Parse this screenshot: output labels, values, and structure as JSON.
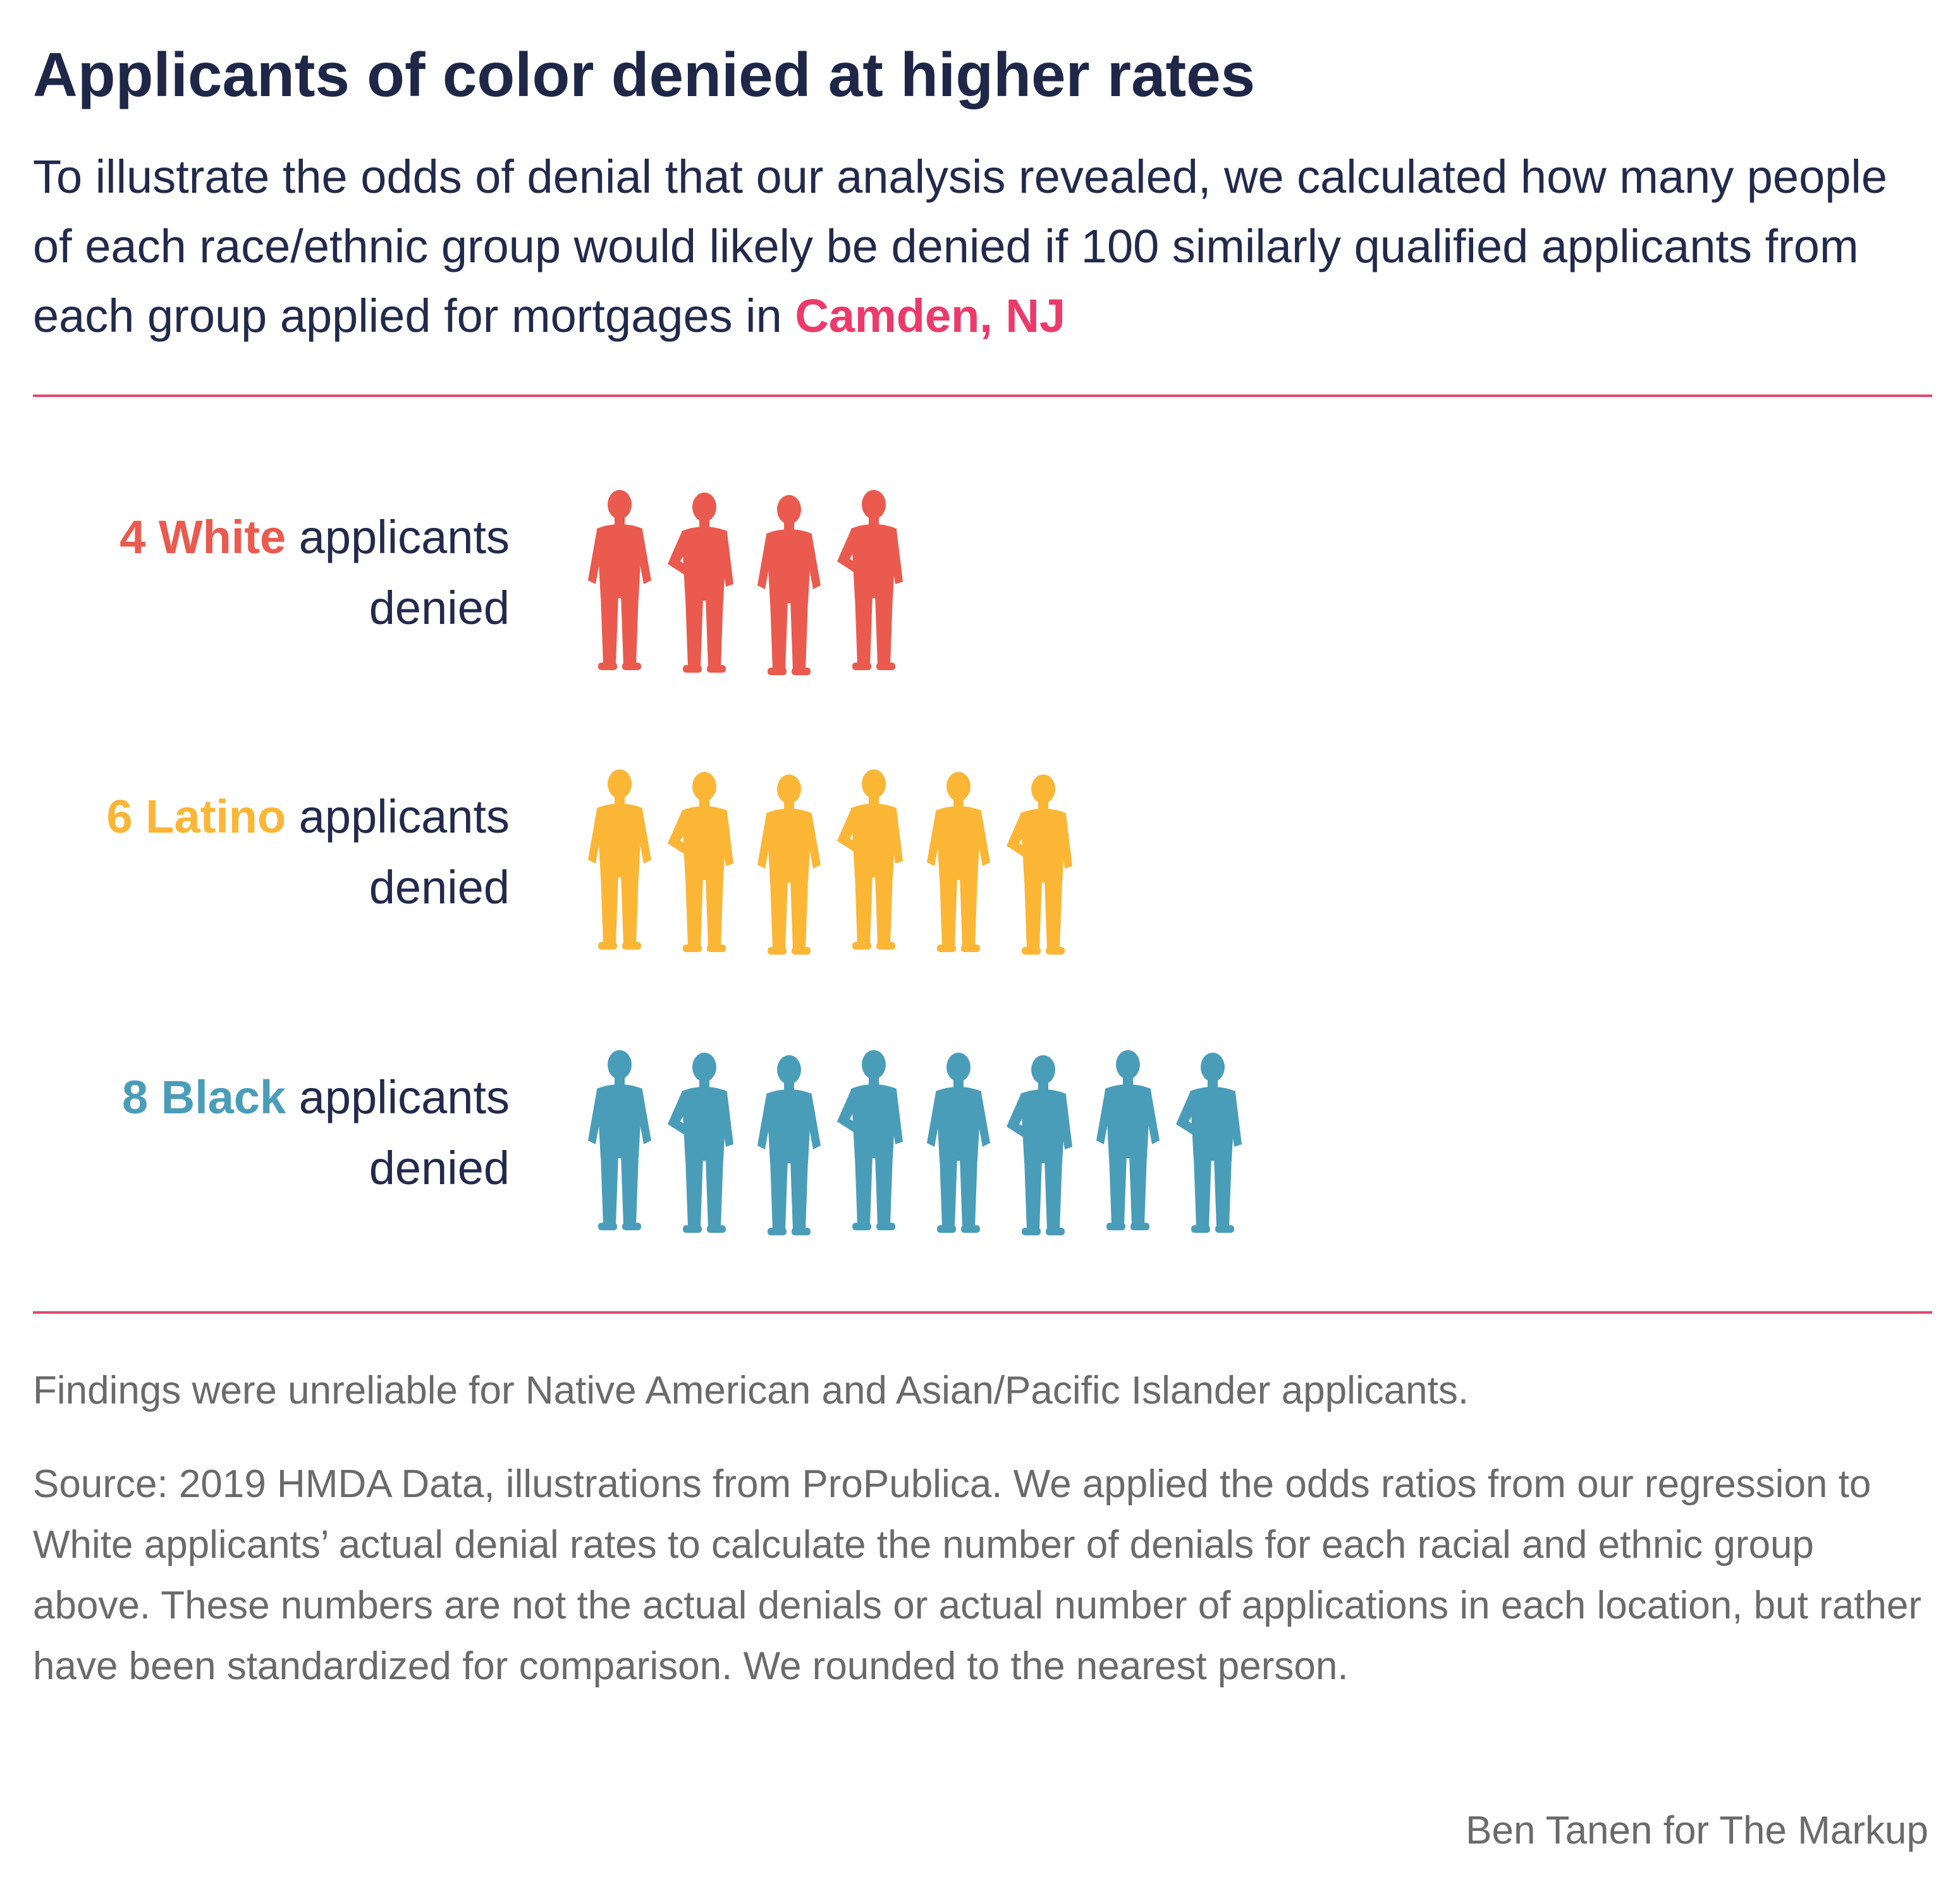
{
  "title": "Applicants of color denied at higher rates",
  "subtitle": "To illustrate the odds of denial that our analysis revealed, we calculated how many people of each race/ethnic group would likely be denied if 100 similarly qualified applicants from each group applied for mortgages in",
  "location": "Camden, NJ",
  "colors": {
    "accent": "#ec3a6a",
    "rule": "#e0496f",
    "white": "#ea5a4e",
    "latino": "#fbb636",
    "black": "#4a9db8"
  },
  "chart_data": {
    "type": "pictogram",
    "title": "Applicants of color denied at higher rates",
    "unit": "applicants denied per 100 similarly qualified applicants",
    "categories": [
      "White",
      "Latino",
      "Black"
    ],
    "values": [
      4,
      6,
      8
    ],
    "rows": [
      {
        "count": "4",
        "group": "White",
        "rest": "applicants",
        "line2": "denied",
        "color": "#ea5a4e"
      },
      {
        "count": "6",
        "group": "Latino",
        "rest": "applicants",
        "line2": "denied",
        "color": "#fbb636"
      },
      {
        "count": "8",
        "group": "Black",
        "rest": "applicants",
        "line2": "denied",
        "color": "#4a9db8"
      }
    ]
  },
  "note": "Findings were unreliable for Native American and Asian/Pacific Islander applicants.",
  "source": "Source: 2019 HMDA Data, illustrations from ProPublica. We applied the odds ratios from our regression to White applicants’ actual denial rates to calculate the number of denials for each racial and ethnic group above. These numbers are not the actual denials or actual number of applications in each location, but rather have been standardized for comparison. We rounded to the nearest person.",
  "credit": "Ben Tanen for The Markup"
}
